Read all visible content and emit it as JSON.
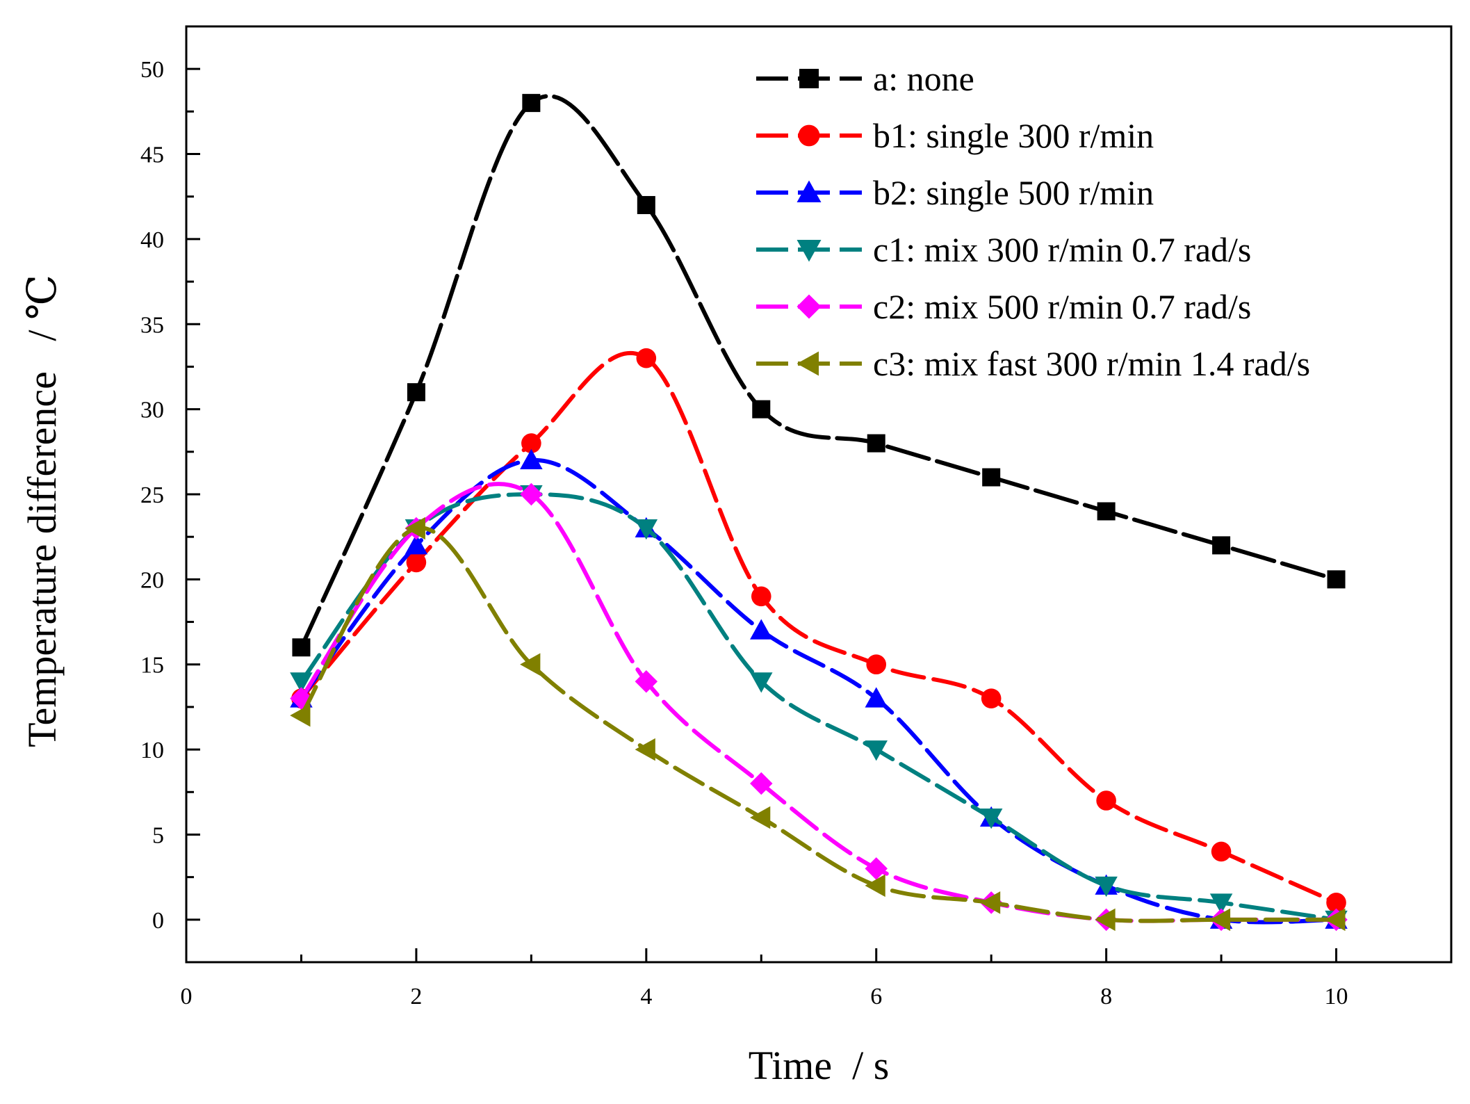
{
  "chart_data": {
    "type": "line",
    "title": "",
    "xlabel": "Time  / s",
    "ylabel": "Temperature difference   / ℃",
    "xlim": [
      0,
      11
    ],
    "ylim": [
      -2.5,
      52.5
    ],
    "xticks": [
      0,
      2,
      4,
      6,
      8,
      10
    ],
    "yticks": [
      0,
      5,
      10,
      15,
      20,
      25,
      30,
      35,
      40,
      45,
      50
    ],
    "xtick_labels": [
      "0",
      "2",
      "4",
      "6",
      "8",
      "10"
    ],
    "ytick_labels": [
      "0",
      "5",
      "10",
      "15",
      "20",
      "25",
      "30",
      "35",
      "40",
      "45",
      "50"
    ],
    "grid": false,
    "legend_position": "top-right",
    "x": [
      1,
      2,
      3,
      4,
      5,
      6,
      7,
      8,
      9,
      10
    ],
    "series": [
      {
        "name": "a: none",
        "color": "#000000",
        "marker": "square",
        "values": [
          16,
          31,
          48,
          42,
          30,
          28,
          26,
          24,
          22,
          20
        ]
      },
      {
        "name": "b1: single 300 r/min",
        "color": "#ff0000",
        "marker": "circle",
        "values": [
          13,
          21,
          28,
          33,
          19,
          15,
          13,
          7,
          4,
          1
        ]
      },
      {
        "name": "b2: single 500 r/min",
        "color": "#0000ff",
        "marker": "triangle-up",
        "values": [
          13,
          22,
          27,
          23,
          17,
          13,
          6,
          2,
          0,
          0
        ]
      },
      {
        "name": "c1: mix    300 r/min 0.7 rad/s",
        "color": "#008080",
        "marker": "triangle-down",
        "values": [
          14,
          23,
          25,
          23,
          14,
          10,
          6,
          2,
          1,
          0
        ]
      },
      {
        "name": "c2: mix    500 r/min 0.7 rad/s",
        "color": "#ff00ff",
        "marker": "diamond",
        "values": [
          13,
          23,
          25,
          14,
          8,
          3,
          1,
          0,
          0,
          0
        ]
      },
      {
        "name": "c3: mix fast  300 r/min 1.4 rad/s",
        "color": "#808000",
        "marker": "triangle-left",
        "values": [
          12,
          23,
          15,
          10,
          6,
          2,
          1,
          0,
          0,
          0
        ]
      }
    ]
  }
}
